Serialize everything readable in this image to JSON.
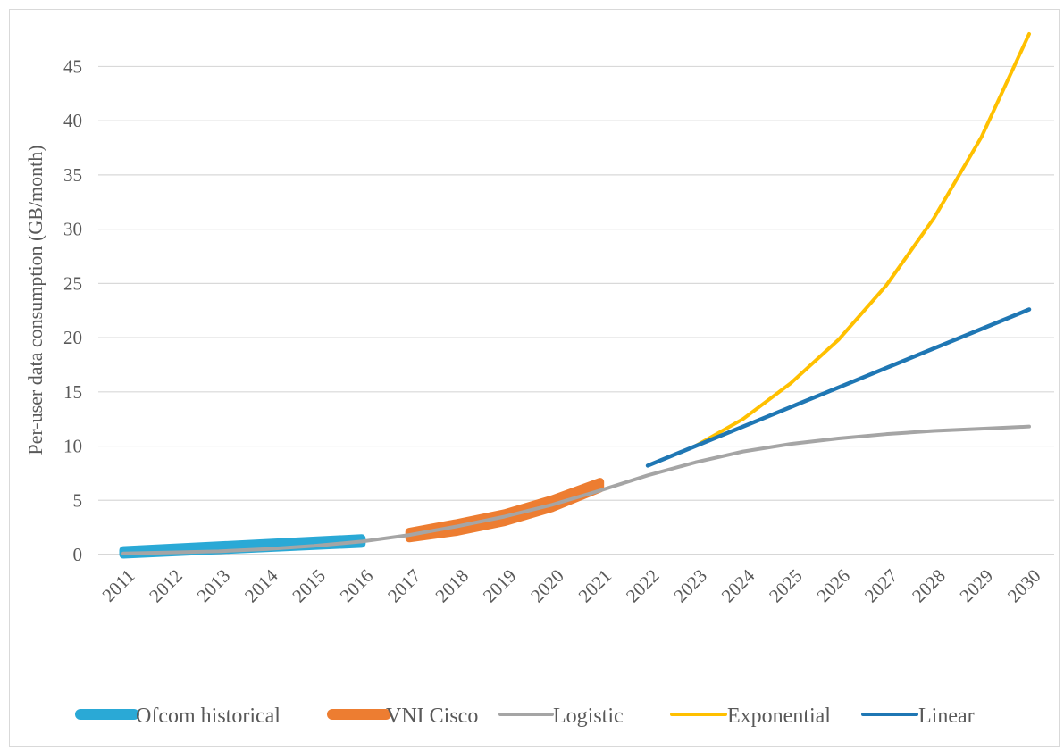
{
  "chart_data": {
    "type": "line",
    "title": "",
    "xlabel": "",
    "ylabel": "Per-user data consumption (GB/month)",
    "ylim": [
      0,
      48
    ],
    "yticks": [
      0,
      5,
      10,
      15,
      20,
      25,
      30,
      35,
      40,
      45
    ],
    "categories": [
      "2011",
      "2012",
      "2013",
      "2014",
      "2015",
      "2016",
      "2017",
      "2018",
      "2019",
      "2020",
      "2021",
      "2022",
      "2023",
      "2024",
      "2025",
      "2026",
      "2027",
      "2028",
      "2029",
      "2030"
    ],
    "grid": "horizontal",
    "legend_position": "bottom",
    "series": [
      {
        "name": "Ofcom historical",
        "color": "#2aa9d6",
        "style": "thick-band",
        "x": [
          2011,
          2016
        ],
        "upper": [
          0.4,
          1.5
        ],
        "lower": [
          0.0,
          1.0
        ]
      },
      {
        "name": "VNI Cisco",
        "color": "#ed7d31",
        "style": "thick-band",
        "x": [
          2017,
          2018,
          2019,
          2020,
          2021
        ],
        "upper": [
          2.1,
          2.9,
          3.8,
          5.1,
          6.7
        ],
        "lower": [
          1.5,
          2.1,
          3.0,
          4.3,
          6.1
        ]
      },
      {
        "name": "Logistic",
        "color": "#a5a5a5",
        "x": [
          2011,
          2012,
          2013,
          2014,
          2015,
          2016,
          2017,
          2018,
          2019,
          2020,
          2021,
          2022,
          2023,
          2024,
          2025,
          2026,
          2027,
          2028,
          2029,
          2030
        ],
        "y": [
          0.1,
          0.2,
          0.3,
          0.5,
          0.8,
          1.2,
          1.8,
          2.6,
          3.5,
          4.6,
          5.9,
          7.3,
          8.5,
          9.5,
          10.2,
          10.7,
          11.1,
          11.4,
          11.6,
          11.8
        ]
      },
      {
        "name": "Exponential",
        "color": "#ffc000",
        "x": [
          2023,
          2024,
          2025,
          2026,
          2027,
          2028,
          2029,
          2030
        ],
        "y": [
          10.0,
          12.5,
          15.8,
          19.8,
          24.8,
          31.0,
          38.5,
          48.0
        ]
      },
      {
        "name": "Linear",
        "color": "#1f77b4",
        "x": [
          2022,
          2023,
          2024,
          2025,
          2026,
          2027,
          2028,
          2029,
          2030
        ],
        "y": [
          8.2,
          10.0,
          11.8,
          13.6,
          15.4,
          17.2,
          19.0,
          20.8,
          22.6
        ]
      }
    ],
    "legend_order": [
      "Ofcom historical",
      "VNI Cisco",
      "Logistic",
      "Exponential",
      "Linear"
    ]
  }
}
